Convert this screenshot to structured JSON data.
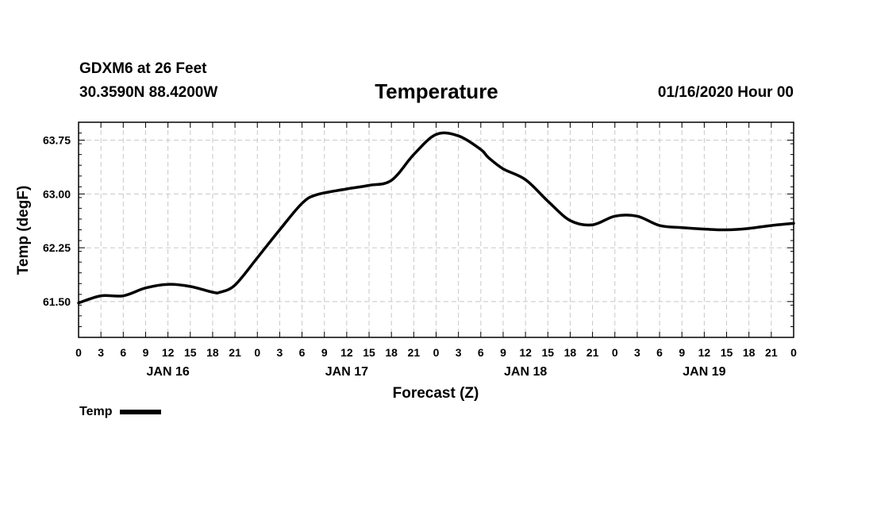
{
  "header": {
    "station": "GDXM6 at 26 Feet",
    "coords": "30.3590N 88.4200W",
    "title": "Temperature",
    "runtime": "01/16/2020 Hour 00"
  },
  "legend": {
    "label": "Temp",
    "color": "#000000"
  },
  "chart_data": {
    "type": "line",
    "title": "Temperature",
    "xlabel": "Forecast (Z)",
    "ylabel": "Temp (degF)",
    "xlim": [
      0,
      96
    ],
    "ylim": [
      61.0,
      64.0
    ],
    "grid": true,
    "yticks": [
      61.5,
      62.25,
      63.0,
      63.75
    ],
    "ytick_labels": [
      "61.50",
      "62.25",
      "63.00",
      "63.75"
    ],
    "xtick_hours": [
      0,
      3,
      6,
      9,
      12,
      15,
      18,
      21,
      24,
      27,
      30,
      33,
      36,
      39,
      42,
      45,
      48,
      51,
      54,
      57,
      60,
      63,
      66,
      69,
      72,
      75,
      78,
      81,
      84,
      87,
      90,
      93,
      96
    ],
    "xtick_labels": [
      "0",
      "3",
      "6",
      "9",
      "12",
      "15",
      "18",
      "21",
      "0",
      "3",
      "6",
      "9",
      "12",
      "15",
      "18",
      "21",
      "0",
      "3",
      "6",
      "9",
      "12",
      "15",
      "18",
      "21",
      "0",
      "3",
      "6",
      "9",
      "12",
      "15",
      "18",
      "21",
      "0"
    ],
    "day_labels": [
      {
        "hour": 12,
        "label": "JAN 16"
      },
      {
        "hour": 36,
        "label": "JAN 17"
      },
      {
        "hour": 60,
        "label": "JAN 18"
      },
      {
        "hour": 84,
        "label": "JAN 19"
      }
    ],
    "series": [
      {
        "name": "Temp",
        "color": "#000000",
        "x": [
          0,
          3,
          6,
          9,
          12,
          15,
          18,
          19,
          21,
          24,
          27,
          30,
          32,
          36,
          39,
          42,
          45,
          48,
          51,
          54,
          55,
          57,
          60,
          63,
          66,
          69,
          72,
          75,
          78,
          81,
          84,
          87,
          90,
          93,
          96
        ],
        "y": [
          61.48,
          61.58,
          61.58,
          61.69,
          61.74,
          61.71,
          61.63,
          61.63,
          61.73,
          62.11,
          62.5,
          62.87,
          62.99,
          63.07,
          63.12,
          63.19,
          63.55,
          63.83,
          63.81,
          63.62,
          63.51,
          63.35,
          63.2,
          62.9,
          62.63,
          62.57,
          62.69,
          62.69,
          62.56,
          62.53,
          62.51,
          62.5,
          62.52,
          62.56,
          62.59
        ]
      }
    ]
  }
}
